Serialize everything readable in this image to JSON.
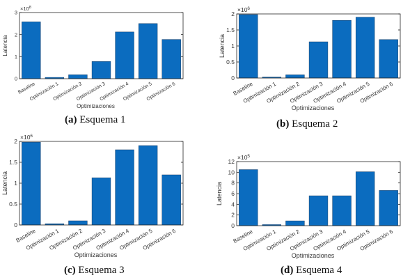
{
  "chart_data": [
    {
      "type": "bar",
      "caption_letter": "(a)",
      "caption_text": "Esquema 1",
      "categories": [
        "Baseline",
        "Optimización 1",
        "Optimización 2",
        "Optimización 3",
        "Optimización 4",
        "Optimización 5",
        "Optimización 6"
      ],
      "values": [
        2.58,
        0.06,
        0.18,
        0.78,
        2.12,
        2.5,
        1.78
      ],
      "exponent_label": "×10",
      "exponent_power": "8",
      "xlabel": "Optimizaciones",
      "ylabel": "Latencia",
      "ylim": [
        0,
        3
      ],
      "yticks": [
        "0",
        "1",
        "2",
        "3"
      ],
      "grid": false,
      "color": "#0b6cbf"
    },
    {
      "type": "bar",
      "caption_letter": "(b)",
      "caption_text": "Esquema 2",
      "categories": [
        "Baseline",
        "Optimización 1",
        "Optimización 2",
        "Optimización 3",
        "Optimización 4",
        "Optimización 5",
        "Optimización 6"
      ],
      "values": [
        1.98,
        0.03,
        0.1,
        1.13,
        1.8,
        1.9,
        1.2
      ],
      "exponent_label": "×10",
      "exponent_power": "6",
      "xlabel": "Optimizaciones",
      "ylabel": "Latencia",
      "ylim": [
        0,
        2
      ],
      "yticks": [
        "0",
        "0.5",
        "1",
        "1.5",
        "2"
      ],
      "grid": false,
      "color": "#0b6cbf"
    },
    {
      "type": "bar",
      "caption_letter": "(c)",
      "caption_text": "Esquema 3",
      "categories": [
        "Baseline",
        "Optimización 1",
        "Optimización 2",
        "Optimización 3",
        "Optimización 4",
        "Optimización 5",
        "Optimización 6"
      ],
      "values": [
        1.98,
        0.03,
        0.1,
        1.13,
        1.8,
        1.9,
        1.2
      ],
      "exponent_label": "×10",
      "exponent_power": "6",
      "xlabel": "Optimizaciones",
      "ylabel": "Latencia",
      "ylim": [
        0,
        2
      ],
      "yticks": [
        "0",
        "0.5",
        "1",
        "1.5",
        "2"
      ],
      "grid": false,
      "color": "#0b6cbf"
    },
    {
      "type": "bar",
      "caption_letter": "(d)",
      "caption_text": "Esquema 4",
      "categories": [
        "Baseline",
        "Optimización 1",
        "Optimización 2",
        "Optimización 3",
        "Optimización 4",
        "Optimización 5",
        "Optimización 6"
      ],
      "values": [
        10.5,
        0.2,
        0.9,
        5.6,
        5.6,
        10.1,
        6.6
      ],
      "exponent_label": "×10",
      "exponent_power": "5",
      "xlabel": "Optimizaciones",
      "ylabel": "Latencia",
      "ylim": [
        0,
        12
      ],
      "yticks": [
        "0",
        "2",
        "4",
        "6",
        "8",
        "10",
        "12"
      ],
      "grid": false,
      "color": "#0b6cbf"
    }
  ]
}
